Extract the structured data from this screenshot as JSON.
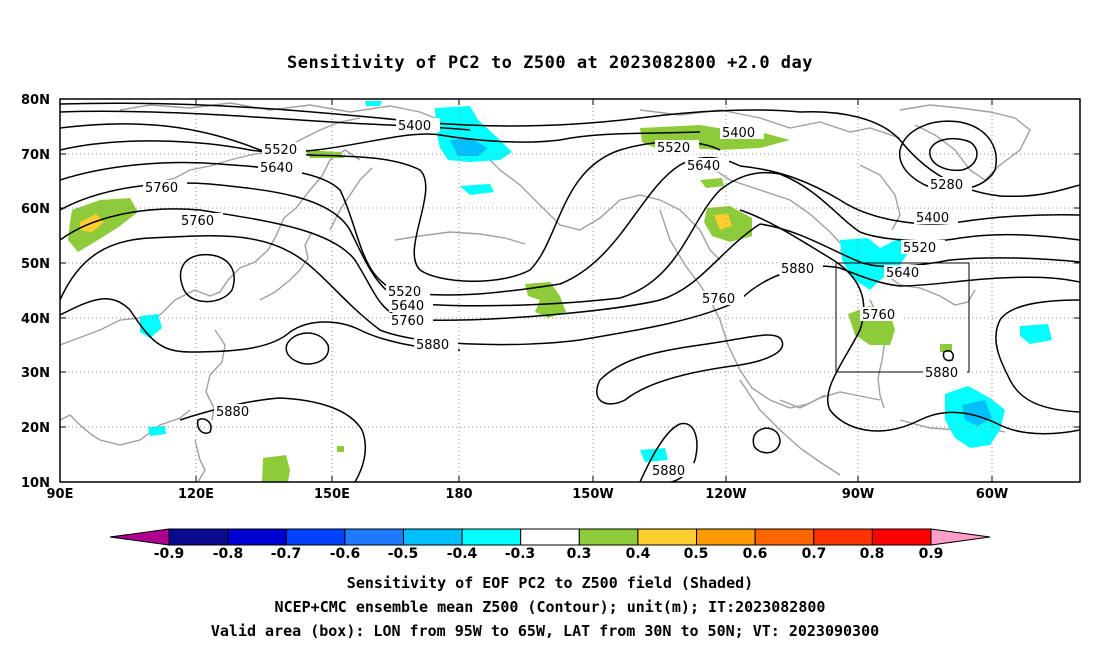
{
  "title": "Sensitivity of PC2 to Z500 at 2023082800 +2.0 day",
  "lat_labels": [
    "80N",
    "70N",
    "60N",
    "50N",
    "40N",
    "30N",
    "20N",
    "10N"
  ],
  "lon_labels": [
    "90E",
    "120E",
    "150E",
    "180",
    "150W",
    "120W",
    "90W",
    "60W"
  ],
  "contour_labels": {
    "c5400a": "5400",
    "c5520a": "5520",
    "c5640a": "5640",
    "c5760a": "5760",
    "c5760b": "5760",
    "c5520b": "5520",
    "c5640b": "5640",
    "c5760c": "5760",
    "c5880a": "5880",
    "c5880b": "5880",
    "c5400b": "5400",
    "c5520c": "5520",
    "c5640c": "5640",
    "c5880c": "5880",
    "c5760d": "5760",
    "c5280": "5280",
    "c5400c": "5400",
    "c5520d": "5520",
    "c5640d": "5640",
    "c5760e": "5760",
    "c5880d": "5880",
    "c5880e": "5880"
  },
  "colorbar": {
    "labels": [
      "-0.9",
      "-0.8",
      "-0.7",
      "-0.6",
      "-0.5",
      "-0.4",
      "-0.3",
      "0.3",
      "0.4",
      "0.5",
      "0.6",
      "0.7",
      "0.8",
      "0.9"
    ],
    "colors": [
      "#0a0a8f",
      "#0000d0",
      "#0040ff",
      "#1f78ff",
      "#00bfff",
      "#00ffff",
      "#ffffff",
      "#8ecb3a",
      "#ffcf30",
      "#ff9b00",
      "#ff6600",
      "#ff3300",
      "#ff0000"
    ],
    "low_end_color": "#b00090",
    "high_end_color": "#ff9ec8"
  },
  "captions": {
    "line1": "Sensitivity of EOF PC2 to Z500 field (Shaded)",
    "line2": "NCEP+CMC ensemble mean Z500 (Contour); unit(m); IT:2023082800",
    "line3": "Valid area (box): LON from 95W to 65W, LAT from 30N to 50N; VT: 2023090300"
  }
}
